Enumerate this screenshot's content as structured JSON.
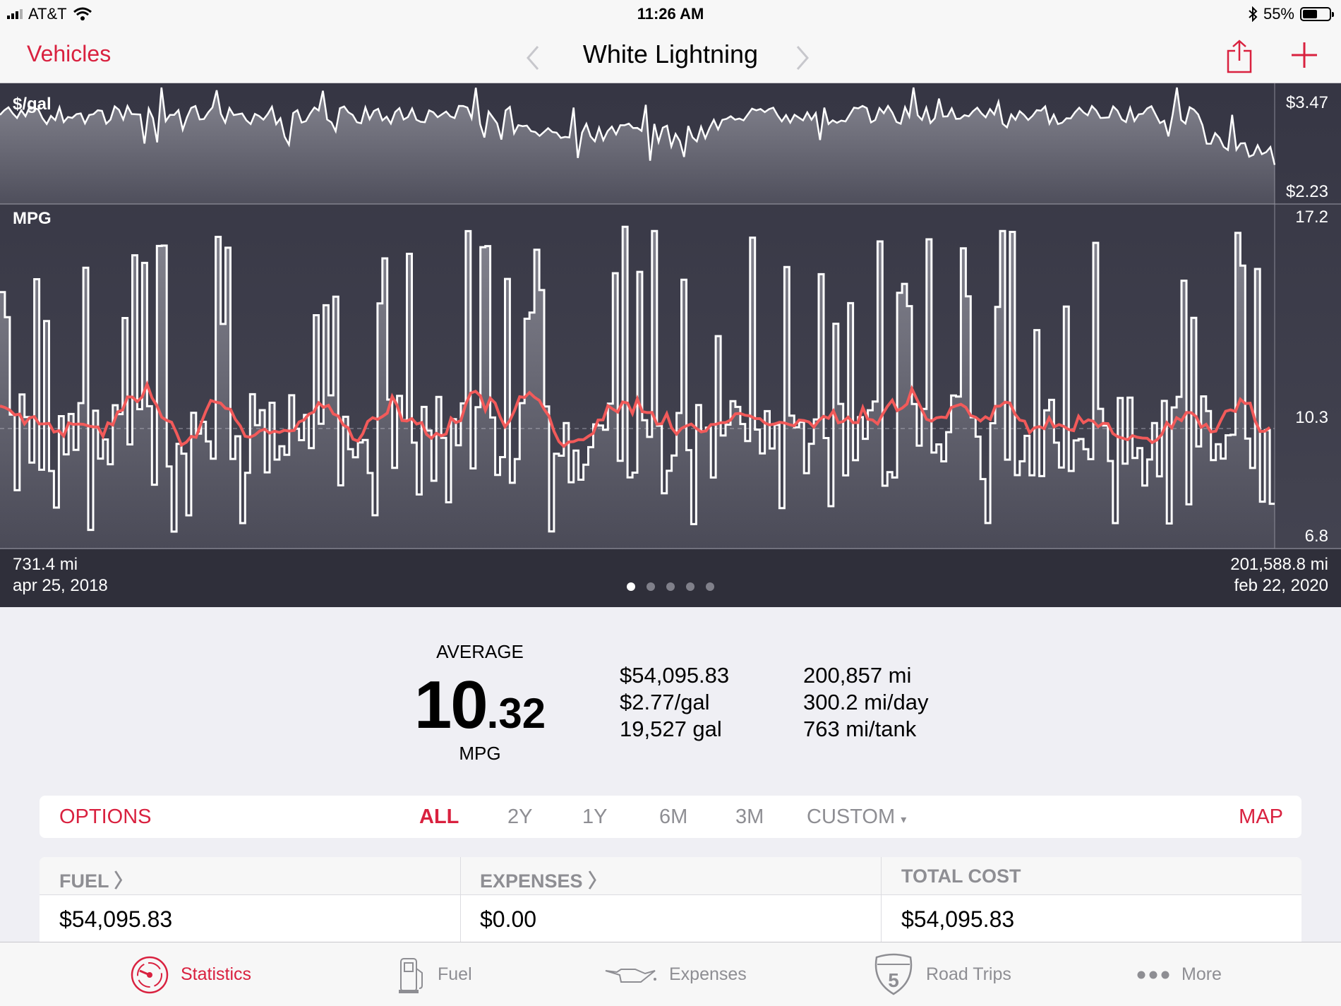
{
  "status_bar": {
    "carrier": "AT&T",
    "time": "11:26 AM",
    "battery_label": "55%",
    "battery_level": 0.55
  },
  "nav": {
    "back_label": "Vehicles",
    "title": "White Lightning"
  },
  "chart": {
    "price_label": "$/gal",
    "price_max": "$3.47",
    "price_min": "$2.23",
    "mpg_label": "MPG",
    "mpg_max": "17.2",
    "mpg_avg": "10.3",
    "mpg_min": "6.8",
    "start_odometer": "731.4 mi",
    "start_date": "apr 25, 2018",
    "end_odometer": "201,588.8 mi",
    "end_date": "feb 22, 2020",
    "page_count": 5,
    "active_page": 0
  },
  "chart_data": [
    {
      "type": "line",
      "xlabel": "",
      "ylabel": "$/gal",
      "x_range": [
        "apr 25, 2018",
        "feb 22, 2020"
      ],
      "ylim": [
        2.23,
        3.47
      ],
      "series": []
    },
    {
      "type": "line",
      "xlabel": "",
      "ylabel": "MPG",
      "x_range": [
        "apr 25, 2018",
        "feb 22, 2020"
      ],
      "ylim": [
        6.8,
        17.2
      ],
      "reference_line": 10.3,
      "series": []
    }
  ],
  "summary": {
    "average_label": "AVERAGE",
    "average_int": "10",
    "average_dec": ".32",
    "average_unit": "MPG",
    "cost_total": "$54,095.83",
    "cost_per_gal": "$2.77/gal",
    "gallons": "19,527 gal",
    "distance": "200,857 mi",
    "per_day": "300.2 mi/day",
    "per_tank": "763 mi/tank"
  },
  "range_bar": {
    "options": "OPTIONS",
    "ranges": [
      "ALL",
      "2Y",
      "1Y",
      "6M",
      "3M"
    ],
    "custom": "CUSTOM",
    "custom_caret": "▾",
    "map": "MAP"
  },
  "table": {
    "fuel_header": "FUEL",
    "fuel_value": "$54,095.83",
    "expenses_header": "EXPENSES",
    "expenses_value": "$0.00",
    "total_header": "TOTAL COST",
    "total_value": "$54,095.83",
    "chevron": "〉"
  },
  "tabs": [
    {
      "label": "Statistics",
      "icon": "gauge-icon",
      "active": true
    },
    {
      "label": "Fuel",
      "icon": "fuel-pump-icon",
      "active": false
    },
    {
      "label": "Expenses",
      "icon": "oil-can-icon",
      "active": false
    },
    {
      "label": "Road Trips",
      "icon": "interstate-shield-icon",
      "active": false
    },
    {
      "label": "More",
      "icon": "more-dots-icon",
      "active": false
    }
  ],
  "tab_shield_number": "5",
  "colors": {
    "accent": "#d9213f",
    "chart_bg": "#3c3c48",
    "trend_line": "#f25a5a"
  }
}
